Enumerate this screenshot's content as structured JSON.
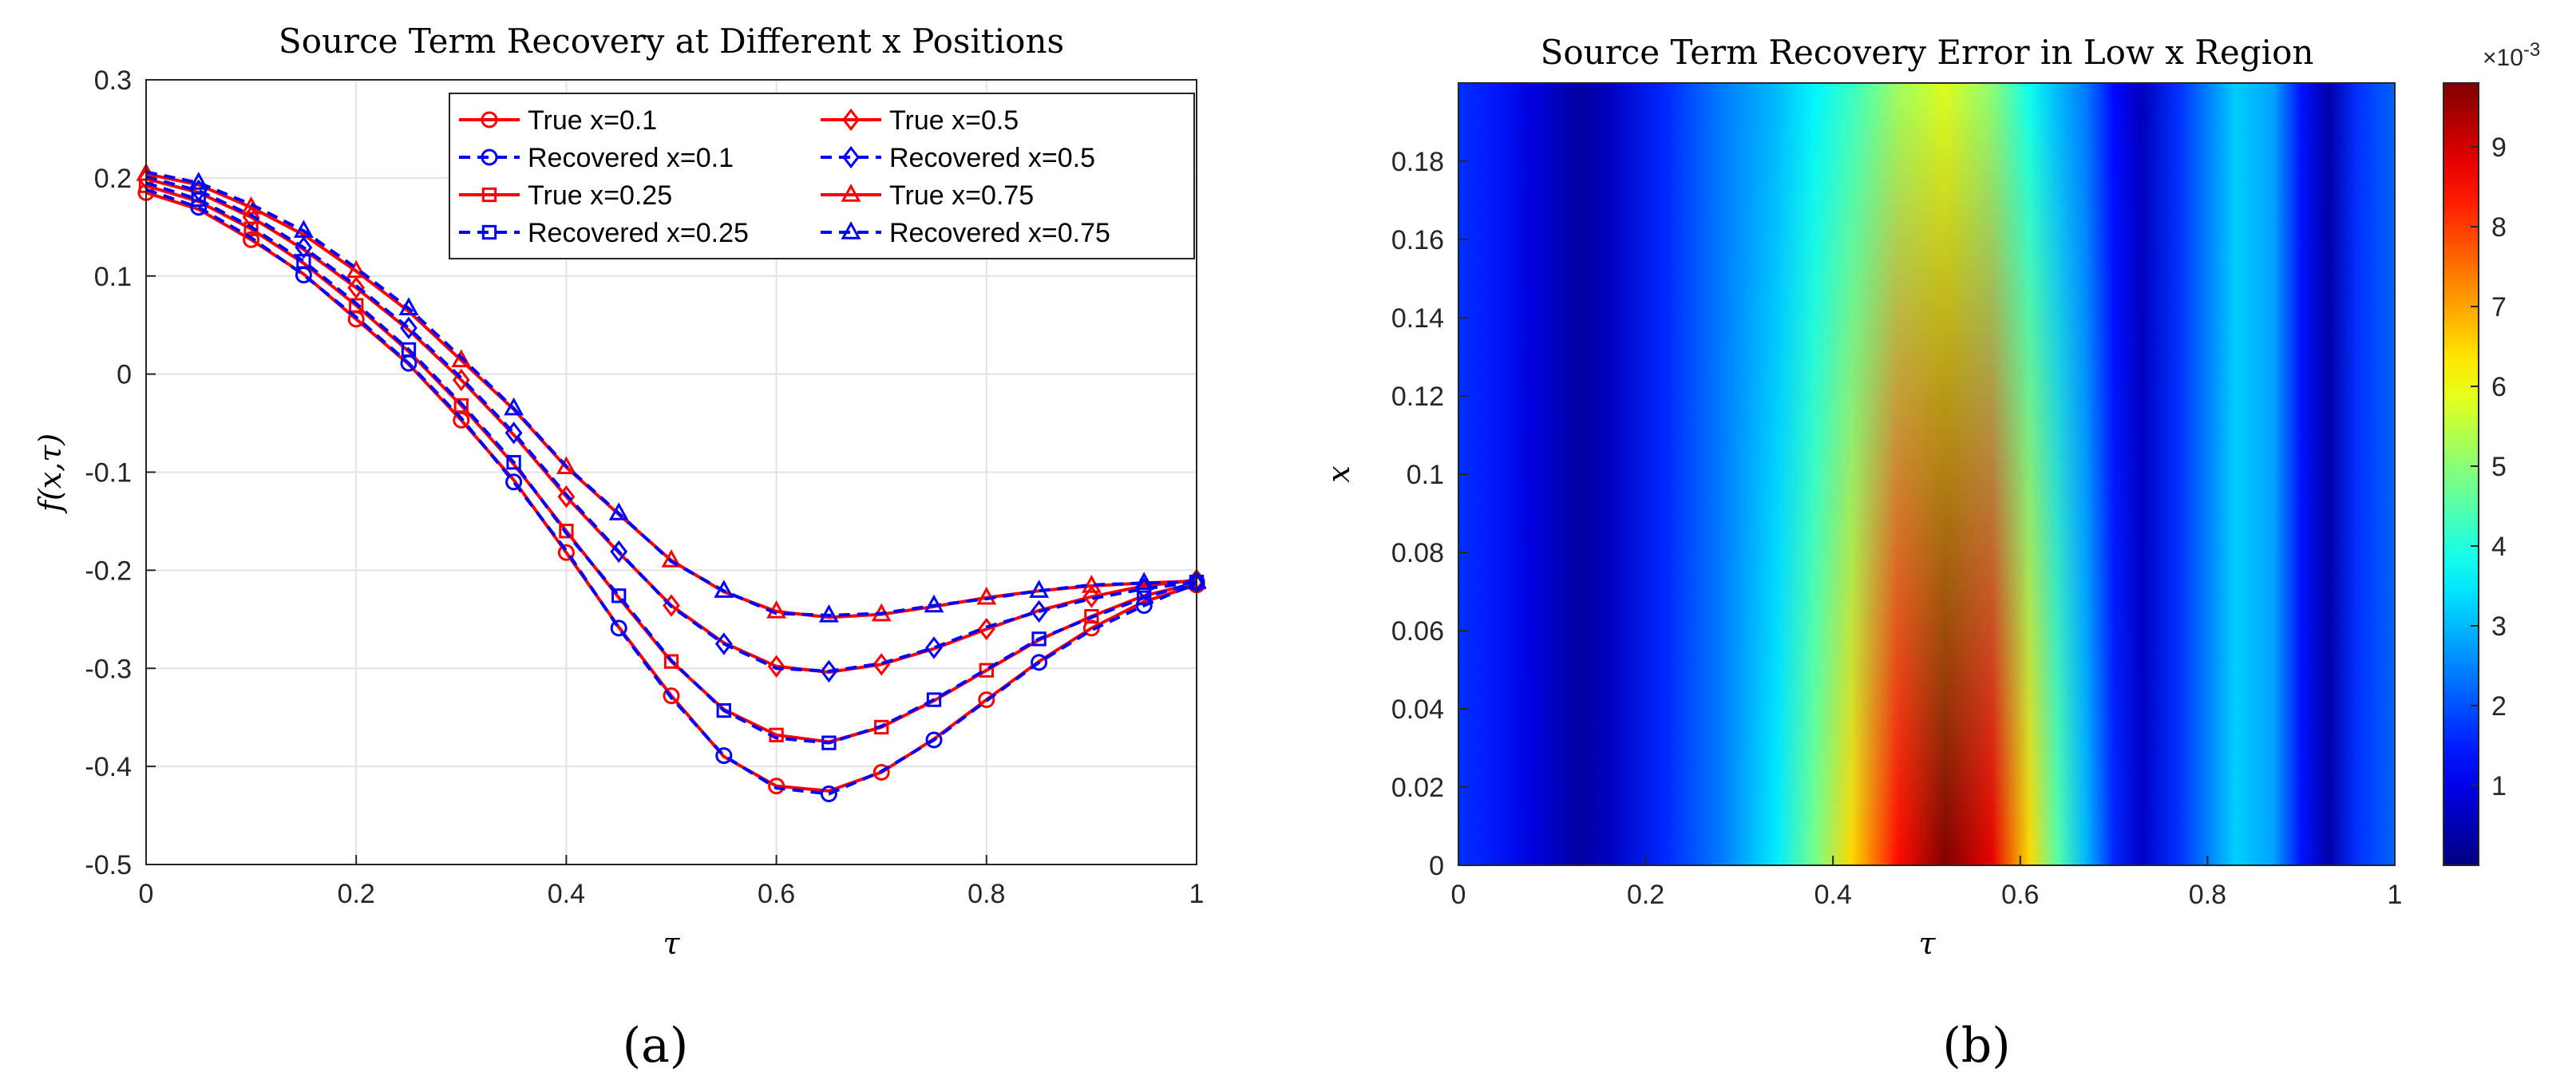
{
  "chart_data": [
    {
      "type": "line",
      "title": "Source Term Recovery at Different x Positions",
      "xlabel": "τ",
      "ylabel": "f(x,τ)",
      "xlim": [
        0,
        1
      ],
      "ylim": [
        -0.5,
        0.3
      ],
      "xticks": [
        "0",
        "0.2",
        "0.4",
        "0.6",
        "0.8",
        "1"
      ],
      "yticks": [
        "0.3",
        "0.2",
        "0.1",
        "0",
        "-0.1",
        "-0.2",
        "-0.3",
        "-0.4",
        "-0.5"
      ],
      "grid": true,
      "legend_position": "top-right",
      "tau": [
        0,
        0.05,
        0.1,
        0.15,
        0.2,
        0.25,
        0.3,
        0.35,
        0.4,
        0.45,
        0.5,
        0.55,
        0.6,
        0.65,
        0.7,
        0.75,
        0.8,
        0.85,
        0.9,
        0.95,
        1.0
      ],
      "series": [
        {
          "name": "True x=0.1",
          "style": "true",
          "marker": "circle",
          "color": "#ff0000",
          "values": [
            0.185,
            0.168,
            0.137,
            0.102,
            0.056,
            0.01,
            -0.047,
            -0.108,
            -0.182,
            -0.258,
            -0.328,
            -0.39,
            -0.42,
            -0.425,
            -0.406,
            -0.372,
            -0.332,
            -0.293,
            -0.259,
            -0.232,
            -0.215
          ]
        },
        {
          "name": "Recovered x=0.1",
          "style": "recovered",
          "marker": "circle",
          "color": "#0000ff",
          "values": [
            0.188,
            0.17,
            0.139,
            0.101,
            0.058,
            0.011,
            -0.045,
            -0.11,
            -0.18,
            -0.259,
            -0.33,
            -0.389,
            -0.422,
            -0.428,
            -0.405,
            -0.373,
            -0.333,
            -0.294,
            -0.261,
            -0.236,
            -0.213
          ]
        },
        {
          "name": "True x=0.25",
          "style": "true",
          "marker": "square",
          "color": "#ff0000",
          "values": [
            0.192,
            0.176,
            0.148,
            0.113,
            0.07,
            0.023,
            -0.032,
            -0.092,
            -0.16,
            -0.228,
            -0.293,
            -0.342,
            -0.368,
            -0.375,
            -0.36,
            -0.333,
            -0.302,
            -0.271,
            -0.247,
            -0.226,
            -0.213
          ]
        },
        {
          "name": "Recovered x=0.25",
          "style": "recovered",
          "marker": "square",
          "color": "#0000ff",
          "values": [
            0.195,
            0.178,
            0.15,
            0.115,
            0.072,
            0.025,
            -0.03,
            -0.09,
            -0.162,
            -0.226,
            -0.292,
            -0.343,
            -0.371,
            -0.376,
            -0.359,
            -0.332,
            -0.301,
            -0.27,
            -0.248,
            -0.228,
            -0.212
          ]
        },
        {
          "name": "True x=0.5",
          "style": "true",
          "marker": "diamond",
          "color": "#ff0000",
          "values": [
            0.199,
            0.185,
            0.16,
            0.127,
            0.088,
            0.045,
            -0.006,
            -0.062,
            -0.125,
            -0.182,
            -0.236,
            -0.274,
            -0.298,
            -0.304,
            -0.296,
            -0.28,
            -0.26,
            -0.241,
            -0.227,
            -0.216,
            -0.21
          ]
        },
        {
          "name": "Recovered x=0.5",
          "style": "recovered",
          "marker": "diamond",
          "color": "#0000ff",
          "values": [
            0.201,
            0.187,
            0.162,
            0.129,
            0.09,
            0.047,
            -0.004,
            -0.06,
            -0.123,
            -0.181,
            -0.237,
            -0.275,
            -0.3,
            -0.303,
            -0.295,
            -0.279,
            -0.258,
            -0.242,
            -0.229,
            -0.219,
            -0.212
          ]
        },
        {
          "name": "True x=0.75",
          "style": "true",
          "marker": "triangle",
          "color": "#ff0000",
          "values": [
            0.204,
            0.193,
            0.17,
            0.142,
            0.105,
            0.064,
            0.014,
            -0.036,
            -0.095,
            -0.143,
            -0.19,
            -0.222,
            -0.242,
            -0.248,
            -0.245,
            -0.237,
            -0.228,
            -0.221,
            -0.216,
            -0.213,
            -0.211
          ]
        },
        {
          "name": "Recovered x=0.75",
          "style": "recovered",
          "marker": "triangle",
          "color": "#0000ff",
          "values": [
            0.206,
            0.195,
            0.173,
            0.146,
            0.108,
            0.067,
            0.017,
            -0.035,
            -0.094,
            -0.142,
            -0.191,
            -0.221,
            -0.244,
            -0.246,
            -0.244,
            -0.236,
            -0.229,
            -0.221,
            -0.215,
            -0.213,
            -0.212
          ]
        }
      ]
    },
    {
      "type": "heatmap",
      "title": "Source Term Recovery Error in Low x Region",
      "xlabel": "τ",
      "ylabel": "x",
      "xlim": [
        0,
        1
      ],
      "ylim": [
        0,
        0.2
      ],
      "xticks": [
        "0",
        "0.2",
        "0.4",
        "0.6",
        "0.8",
        "1"
      ],
      "yticks": [
        "0",
        "0.02",
        "0.04",
        "0.06",
        "0.08",
        "0.1",
        "0.12",
        "0.14",
        "0.16",
        "0.18"
      ],
      "colormap": "jet",
      "colorbar": {
        "min": 0,
        "max": 0.0098,
        "ticks": [
          "1",
          "2",
          "3",
          "4",
          "5",
          "6",
          "7",
          "8",
          "9"
        ],
        "exponent": "×10",
        "exponent_power": "-3"
      },
      "error_profile_tau": [
        0,
        0.03,
        0.08,
        0.13,
        0.16,
        0.22,
        0.28,
        0.34,
        0.38,
        0.42,
        0.47,
        0.52,
        0.57,
        0.61,
        0.64,
        0.67,
        0.7,
        0.73,
        0.77,
        0.83,
        0.87,
        0.9,
        0.93,
        0.96,
        1.0
      ],
      "error_at_x0": [
        0.0017,
        0.0015,
        0.0009,
        0.0003,
        0.0006,
        0.0016,
        0.0024,
        0.0035,
        0.0048,
        0.0065,
        0.0085,
        0.0098,
        0.0088,
        0.0065,
        0.0045,
        0.003,
        0.0016,
        0.0007,
        0.0017,
        0.0032,
        0.0028,
        0.0014,
        0.0004,
        0.0017,
        0.0022
      ],
      "error_at_x_top": [
        0.0017,
        0.0015,
        0.0009,
        0.0003,
        0.0006,
        0.0016,
        0.0024,
        0.003,
        0.0036,
        0.0042,
        0.0052,
        0.0058,
        0.005,
        0.0038,
        0.003,
        0.0024,
        0.0013,
        0.0006,
        0.0017,
        0.0032,
        0.0028,
        0.0014,
        0.0004,
        0.0017,
        0.0022
      ]
    }
  ],
  "captions": {
    "a": "(a)",
    "b": "(b)"
  }
}
